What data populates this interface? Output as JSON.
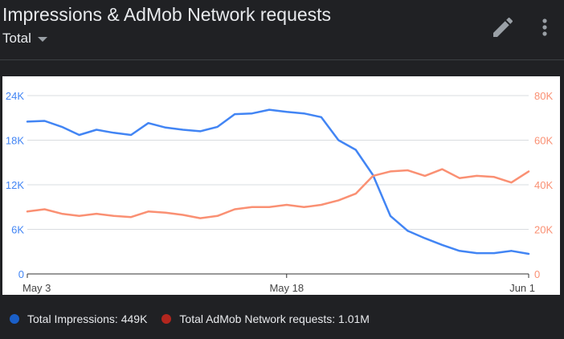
{
  "header": {
    "title": "Impressions & AdMob Network requests",
    "dropdown_label": "Total",
    "edit_icon": "pencil-icon",
    "more_icon": "more-vert-icon"
  },
  "legend": [
    {
      "label": "Total Impressions: 449K",
      "color": "#1a5fc8"
    },
    {
      "label": "Total AdMob Network requests: 1.01M",
      "color": "#b3261e"
    }
  ],
  "chart_data": {
    "type": "line",
    "x": [
      "2021-05-03",
      "2021-05-04",
      "2021-05-05",
      "2021-05-06",
      "2021-05-07",
      "2021-05-08",
      "2021-05-09",
      "2021-05-10",
      "2021-05-11",
      "2021-05-12",
      "2021-05-13",
      "2021-05-14",
      "2021-05-15",
      "2021-05-16",
      "2021-05-17",
      "2021-05-18",
      "2021-05-19",
      "2021-05-20",
      "2021-05-21",
      "2021-05-22",
      "2021-05-23",
      "2021-05-24",
      "2021-05-25",
      "2021-05-26",
      "2021-05-27",
      "2021-05-28",
      "2021-05-29",
      "2021-05-30",
      "2021-05-31",
      "2021-06-01"
    ],
    "x_ticks": [
      "May 3",
      "May 18",
      "Jun 1"
    ],
    "x_tick_index": [
      0,
      15,
      29
    ],
    "series": [
      {
        "axis": "left",
        "color": "#4285f4",
        "values": [
          20500,
          20600,
          19800,
          18700,
          19400,
          19000,
          18700,
          20300,
          19700,
          19400,
          19200,
          19800,
          21500,
          21600,
          22100,
          21800,
          21600,
          21100,
          18000,
          16700,
          13300,
          7800,
          5800,
          4800,
          3900,
          3100,
          2800,
          2800,
          3100,
          2700
        ]
      },
      {
        "axis": "right",
        "color": "#fa9073",
        "values": [
          28000,
          29000,
          27000,
          26000,
          27000,
          26000,
          25500,
          28000,
          27500,
          26500,
          25000,
          26000,
          29000,
          30000,
          30000,
          31000,
          30000,
          31000,
          33000,
          36000,
          44000,
          46000,
          46500,
          44000,
          47000,
          43000,
          44000,
          43500,
          41000,
          46000
        ]
      }
    ],
    "y_left": {
      "ticks": [
        "0",
        "6K",
        "12K",
        "18K",
        "24K"
      ],
      "min": 0,
      "max": 24000,
      "color": "#4285f4"
    },
    "y_right": {
      "ticks": [
        "0",
        "20K",
        "40K",
        "60K",
        "80K"
      ],
      "min": 0,
      "max": 80000,
      "color": "#fa9073"
    },
    "grid": true
  }
}
